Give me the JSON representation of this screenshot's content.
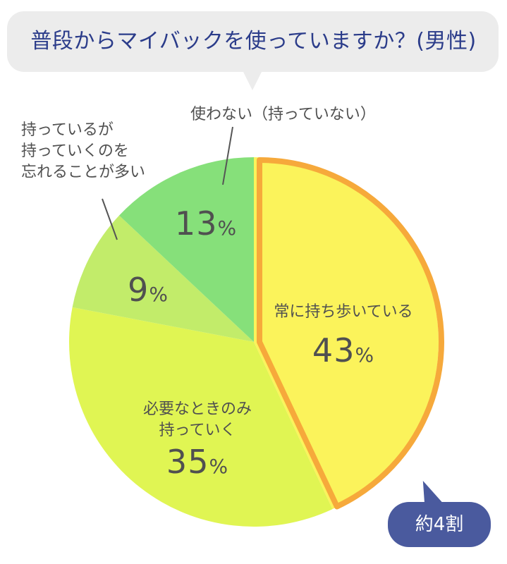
{
  "question": "普段からマイバックを使っていますか？(男性)",
  "chart_data": {
    "type": "pie",
    "title": "普段からマイバックを使っていますか？(男性)",
    "unit": "%",
    "slices": [
      {
        "label": "常に持ち歩いている",
        "value": 43,
        "color": "#fbf35b",
        "highlight": true
      },
      {
        "label": "必要なときのみ持っていく",
        "value": 35,
        "color": "#e0f553"
      },
      {
        "label": "持っているが持っていくのを忘れることが多い",
        "value": 9,
        "color": "#c2ec6a"
      },
      {
        "label": "使わない（持っていない）",
        "value": 13,
        "color": "#86e07a"
      }
    ],
    "highlight_color": "#f6a93b",
    "annotation": "約4割"
  },
  "labels": {
    "always": {
      "text": "常に持ち歩いている",
      "pct": "43"
    },
    "needed_line1": "必要なときのみ",
    "needed_line2": "持っていく",
    "needed_pct": "35",
    "forget_line1": "持っているが",
    "forget_line2": "持っていくのを",
    "forget_line3": "忘れることが多い",
    "forget_pct": "9",
    "none_text": "使わない（持っていない）",
    "none_pct": "13",
    "unit": "%"
  },
  "badge": "約4割"
}
